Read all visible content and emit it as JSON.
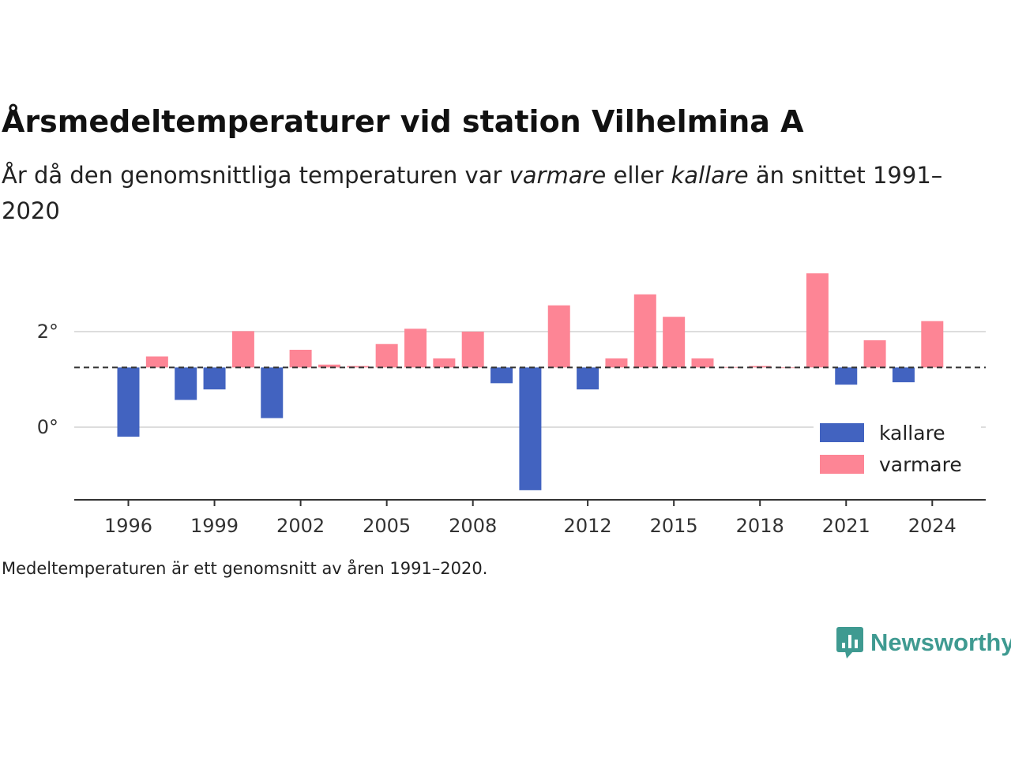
{
  "title": "Årsmedeltemperaturer vid station Vilhelmina A",
  "subtitle": {
    "part1": "År då den genomsnittliga temperaturen var ",
    "warmer": "varmare",
    "part2": " eller ",
    "colder": "kallare",
    "part3": " än snittet 1991–2020"
  },
  "caption": "Medeltemperaturen är ett genomsnitt av åren 1991–2020.",
  "logo": {
    "text": "Newsworthy",
    "icon": "newsworthy-chart-bubble-icon",
    "color": "#3f9a91"
  },
  "chart_data": {
    "type": "bar",
    "baseline": 1.25,
    "ylim": [
      -1.5,
      3.6
    ],
    "yticks": [
      0,
      2
    ],
    "ytick_labels": [
      "0°",
      "2°"
    ],
    "xticks": [
      1996,
      1999,
      2002,
      2005,
      2008,
      2012,
      2015,
      2018,
      2021,
      2024
    ],
    "x": [
      1996,
      1997,
      1998,
      1999,
      2000,
      2001,
      2002,
      2003,
      2004,
      2005,
      2006,
      2007,
      2008,
      2009,
      2010,
      2011,
      2012,
      2013,
      2014,
      2015,
      2016,
      2017,
      2018,
      2019,
      2020,
      2021,
      2022,
      2023,
      2024
    ],
    "values": [
      -0.2,
      1.48,
      0.57,
      0.79,
      2.01,
      0.19,
      1.62,
      1.31,
      1.28,
      1.74,
      2.06,
      1.44,
      2.0,
      0.92,
      -1.32,
      2.55,
      0.79,
      1.44,
      2.78,
      2.31,
      1.44,
      1.26,
      1.28,
      1.25,
      3.22,
      0.89,
      1.82,
      0.94,
      2.22
    ],
    "grid": true,
    "legend": {
      "placement": "bottom-right",
      "entries": [
        {
          "name": "kallare",
          "color": "#4263c0"
        },
        {
          "name": "varmare",
          "color": "#fd8595"
        }
      ]
    },
    "colors": {
      "colder": "#4263c0",
      "warmer": "#fd8595"
    }
  }
}
